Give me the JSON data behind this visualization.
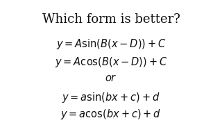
{
  "title": "Which form is better?",
  "line1": "$y = A\\sin\\!\\left(B(x - D)\\right) + C$",
  "line2": "$y = A\\cos\\!\\left(B(x - D)\\right) + C$",
  "line3": "$or$",
  "line4": "$y = a\\sin(bx + c) + d$",
  "line5": "$y = a\\cos(bx + c) + d$",
  "bg_color": "#ffffff",
  "text_color": "#111111",
  "title_fontsize": 13,
  "body_fontsize": 10.5,
  "or_fontsize": 10.5
}
